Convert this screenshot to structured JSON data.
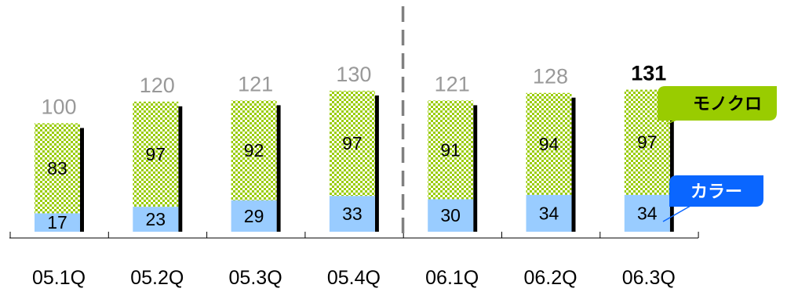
{
  "chart_data": {
    "type": "bar",
    "stacked": true,
    "categories": [
      "05.1Q",
      "05.2Q",
      "05.3Q",
      "05.4Q",
      "06.1Q",
      "06.2Q",
      "06.3Q"
    ],
    "series": [
      {
        "name": "カラー",
        "values": [
          17,
          23,
          29,
          33,
          30,
          34,
          34
        ],
        "color": "#99ccff"
      },
      {
        "name": "モノクロ",
        "values": [
          83,
          97,
          92,
          97,
          91,
          94,
          97
        ],
        "color": "#99cc00"
      }
    ],
    "totals": [
      "100",
      "120",
      "121",
      "130",
      "121",
      "128",
      "131"
    ],
    "title": "",
    "xlabel": "",
    "ylabel": "",
    "ylim": [
      0,
      140
    ],
    "grid": false,
    "divider_after_category": "05.4Q",
    "highlight_total_category": "06.3Q",
    "legend": "callouts-right",
    "colors": {
      "total_text": "#999999",
      "highlight_total_text": "#000000",
      "shadow": "#000000",
      "divider": "#808080"
    }
  }
}
